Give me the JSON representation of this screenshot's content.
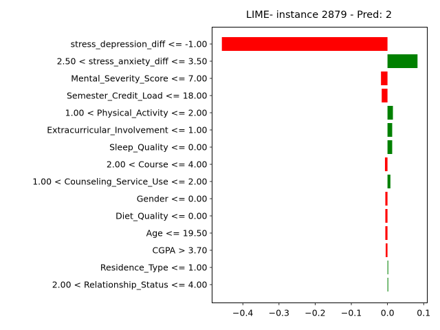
{
  "chart_data": {
    "type": "bar",
    "orientation": "horizontal",
    "title": "LIME- instance 2879 - Pred: 2",
    "xlabel": "",
    "ylabel": "",
    "xlim": [
      -0.485,
      0.11
    ],
    "xticks": [
      -0.4,
      -0.3,
      -0.2,
      -0.1,
      0.0,
      0.1
    ],
    "xtick_labels": [
      "−0.4",
      "−0.3",
      "−0.2",
      "−0.1",
      "0.0",
      "0.1"
    ],
    "grid": false,
    "colors": {
      "positive": "#008000",
      "negative": "#ff0000"
    },
    "categories": [
      "stress_depression_diff <= -1.00",
      "2.50 < stress_anxiety_diff <= 3.50",
      "Mental_Severity_Score <= 7.00",
      "Semester_Credit_Load <= 18.00",
      "1.00 < Physical_Activity <= 2.00",
      "Extracurricular_Involvement <= 1.00",
      "Sleep_Quality <= 0.00",
      "2.00 < Course <= 4.00",
      "1.00 < Counseling_Service_Use <= 2.00",
      "Gender <= 0.00",
      "Diet_Quality <= 0.00",
      "Age <= 19.50",
      "CGPA > 3.70",
      "Residence_Type <= 1.00",
      "2.00 < Relationship_Status <= 4.00"
    ],
    "values": [
      -0.458,
      0.083,
      -0.018,
      -0.016,
      0.015,
      0.013,
      0.013,
      -0.007,
      0.008,
      -0.006,
      -0.006,
      -0.006,
      -0.005,
      0.002,
      0.002
    ]
  }
}
